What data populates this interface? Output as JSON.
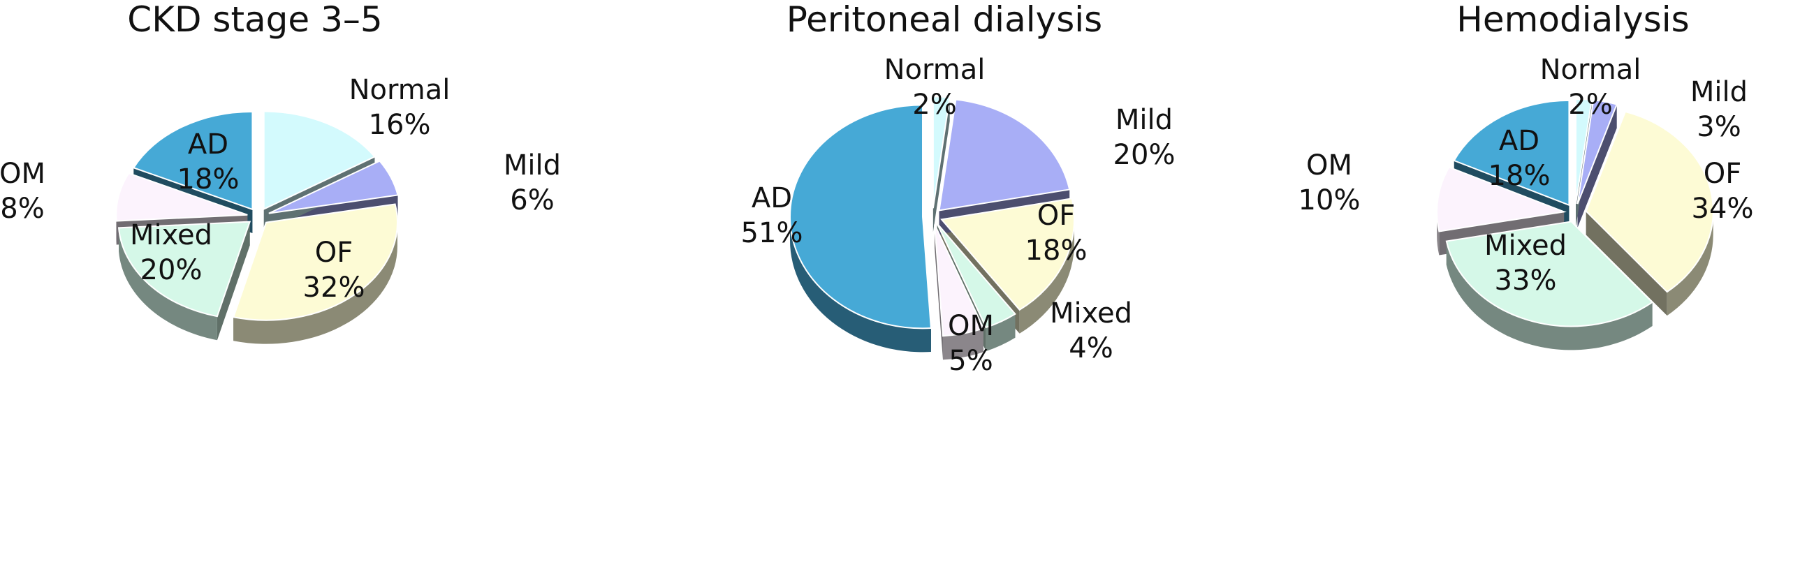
{
  "colors": {
    "Normal": "#d3fafd",
    "Mild": "#a8aef6",
    "OF": "#fdfbd5",
    "Mixed": "#d5f8e8",
    "OM": "#fcf3fd",
    "AD": "#46a9d6"
  },
  "chart_data": [
    {
      "type": "pie",
      "title": "CKD stage 3–5",
      "slices": [
        {
          "label": "Normal",
          "value": 16,
          "pct": "16%"
        },
        {
          "label": "Mild",
          "value": 6,
          "pct": "6%"
        },
        {
          "label": "OF",
          "value": 32,
          "pct": "32%"
        },
        {
          "label": "Mixed",
          "value": 20,
          "pct": "20%"
        },
        {
          "label": "OM",
          "value": 8,
          "pct": "8%"
        },
        {
          "label": "AD",
          "value": 18,
          "pct": "18%"
        }
      ]
    },
    {
      "type": "pie",
      "title": "Peritoneal dialysis",
      "slices": [
        {
          "label": "Normal",
          "value": 2,
          "pct": "2%"
        },
        {
          "label": "Mild",
          "value": 20,
          "pct": "20%"
        },
        {
          "label": "OF",
          "value": 18,
          "pct": "18%"
        },
        {
          "label": "Mixed",
          "value": 4,
          "pct": "4%"
        },
        {
          "label": "OM",
          "value": 5,
          "pct": "5%"
        },
        {
          "label": "AD",
          "value": 51,
          "pct": "51%"
        }
      ]
    },
    {
      "type": "pie",
      "title": "Hemodialysis",
      "slices": [
        {
          "label": "Normal",
          "value": 2,
          "pct": "2%"
        },
        {
          "label": "Mild",
          "value": 3,
          "pct": "3%"
        },
        {
          "label": "OF",
          "value": 34,
          "pct": "34%"
        },
        {
          "label": "Mixed",
          "value": 33,
          "pct": "33%"
        },
        {
          "label": "OM",
          "value": 10,
          "pct": "10%"
        },
        {
          "label": "AD",
          "value": 18,
          "pct": "18%"
        }
      ]
    }
  ]
}
